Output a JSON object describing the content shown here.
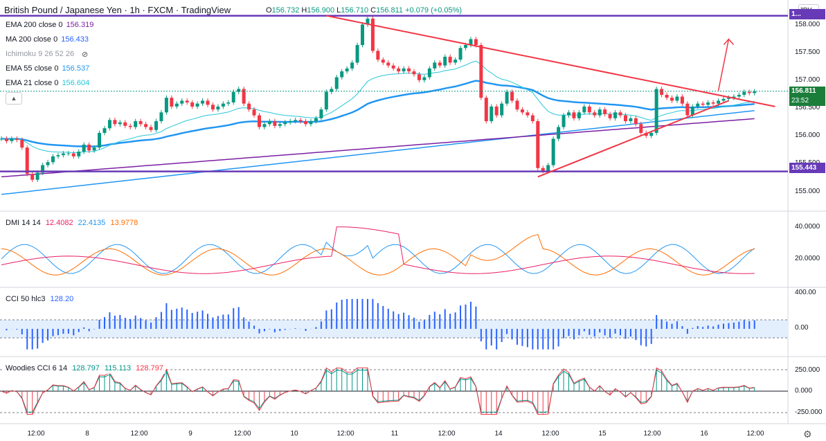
{
  "header": {
    "title": "British Pound / Japanese Yen · 1h · FXCM · TradingView",
    "ohlc": {
      "open_label": "O",
      "open": "156.732",
      "high_label": "H",
      "high": "156.900",
      "low_label": "L",
      "low": "156.710",
      "close_label": "C",
      "close": "156.811",
      "change": "+0.079 (+0.05%)"
    },
    "currency_button": "JPY"
  },
  "indicators": [
    {
      "name": "EMA 200 close 0",
      "value": "156.319",
      "color": "#7b1fa2"
    },
    {
      "name": "MA 200 close 0",
      "value": "156.433",
      "color": "#2962ff"
    },
    {
      "name": "Ichimoku 9 26 52 26",
      "value": "",
      "color": "#9598a1"
    },
    {
      "name": "EMA 55 close 0",
      "value": "156.537",
      "color": "#2196f3"
    },
    {
      "name": "EMA 21 close 0",
      "value": "156.604",
      "color": "#26c6da"
    }
  ],
  "price_axis": {
    "labels": [
      "158.000",
      "157.500",
      "157.000",
      "156.500",
      "156.000",
      "155.500",
      "155.000"
    ],
    "current_price": "156.811",
    "countdown": "23:52",
    "resistance_label": "1...",
    "support_label": "155.443"
  },
  "dmi_pane": {
    "label": "DMI 14 14",
    "values": [
      "12.4082",
      "22.4135",
      "13.9778"
    ],
    "colors": [
      "#e91e63",
      "#2196f3",
      "#ff6d00"
    ],
    "axis": [
      "40.0000",
      "20.0000"
    ]
  },
  "cci_pane": {
    "label": "CCI 50 hlc3",
    "value": "128.20",
    "axis": [
      "400.00",
      "0.00"
    ]
  },
  "woodies_pane": {
    "label": "Woodies CCI 6 14",
    "values": [
      "128.797",
      "115.113",
      "128.797"
    ],
    "colors": [
      "#009688",
      "#009688",
      "#f23645"
    ],
    "axis": [
      "250.000",
      "0.000",
      "-250.000"
    ]
  },
  "time_axis": [
    "12:00",
    "8",
    "12:00",
    "9",
    "12:00",
    "10",
    "12:00",
    "11",
    "12:00",
    "14",
    "12:00",
    "15",
    "12:00",
    "16",
    "12:00"
  ],
  "chart_data": {
    "type": "candlestick",
    "symbol": "GBPJPY",
    "interval": "1h",
    "ylim": [
      154.8,
      158.25
    ],
    "resistance_level": 158.1,
    "support_level": 155.443,
    "closes": [
      156.0,
      155.96,
      156.0,
      155.98,
      155.85,
      155.4,
      155.3,
      155.42,
      155.55,
      155.6,
      155.7,
      155.72,
      155.75,
      155.75,
      155.7,
      155.78,
      155.9,
      155.8,
      155.85,
      156.1,
      156.18,
      156.32,
      156.25,
      156.28,
      156.22,
      156.2,
      156.3,
      156.25,
      156.2,
      156.15,
      156.3,
      156.45,
      156.7,
      156.55,
      156.6,
      156.65,
      156.62,
      156.55,
      156.6,
      156.65,
      156.58,
      156.5,
      156.55,
      156.6,
      156.62,
      156.8,
      156.85,
      156.6,
      156.5,
      156.4,
      156.2,
      156.25,
      156.3,
      156.22,
      156.25,
      156.28,
      156.3,
      156.32,
      156.3,
      156.25,
      156.3,
      156.35,
      156.5,
      156.8,
      156.85,
      157.05,
      157.15,
      157.2,
      157.3,
      157.6,
      157.95,
      158.05,
      157.5,
      157.35,
      157.3,
      157.25,
      157.2,
      157.15,
      157.2,
      157.15,
      157.1,
      157.0,
      157.05,
      157.2,
      157.3,
      157.25,
      157.4,
      157.3,
      157.35,
      157.55,
      157.6,
      157.7,
      157.6,
      156.7,
      156.3,
      156.55,
      156.4,
      156.6,
      156.8,
      156.65,
      156.5,
      156.45,
      156.4,
      156.3,
      155.5,
      155.45,
      155.55,
      156.0,
      156.2,
      156.4,
      156.45,
      156.35,
      156.45,
      156.55,
      156.45,
      156.4,
      156.5,
      156.42,
      156.35,
      156.45,
      156.4,
      156.3,
      156.35,
      156.25,
      156.1,
      156.05,
      156.1,
      156.85,
      156.75,
      156.7,
      156.65,
      156.72,
      156.6,
      156.4,
      156.55,
      156.6,
      156.58,
      156.62,
      156.6,
      156.65,
      156.68,
      156.7,
      156.72,
      156.75,
      156.8,
      156.78,
      156.81
    ],
    "trendlines": [
      {
        "from": [
          63,
          158.1
        ],
        "to": [
          141,
          156.74
        ],
        "extend_to": [
          150,
          156.55
        ],
        "color": "#f23645"
      },
      {
        "from": [
          104,
          155.35
        ],
        "to": [
          141,
          156.65
        ],
        "color": "#f23645"
      }
    ],
    "projection_arrow": {
      "from": [
        139,
        156.82
      ],
      "to": [
        141,
        157.7
      ],
      "color": "#f23645"
    }
  }
}
